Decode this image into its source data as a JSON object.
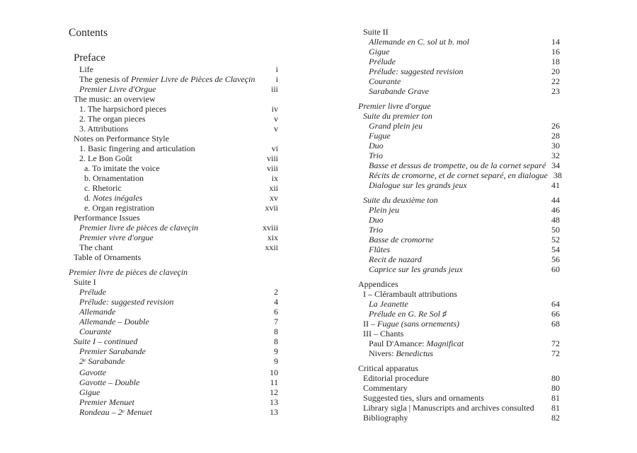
{
  "title": "Contents",
  "columns": [
    {
      "side": "left",
      "entries": [
        {
          "indent": 1,
          "header": true,
          "segments": [
            {
              "text": "Preface"
            }
          ],
          "page": ""
        },
        {
          "indent": 2,
          "segments": [
            {
              "text": "Life"
            }
          ],
          "page": "i"
        },
        {
          "indent": 2,
          "segments": [
            {
              "text": "The genesis of "
            },
            {
              "text": "Premier Livre de Pièces de Claveçin",
              "italic": true
            }
          ],
          "page": "i"
        },
        {
          "indent": 2,
          "segments": [
            {
              "text": "Premier Livre d'Orgue",
              "italic": true
            }
          ],
          "page": "iii"
        },
        {
          "indent": 1,
          "segments": [
            {
              "text": "The music: an overview"
            }
          ],
          "page": ""
        },
        {
          "indent": 2,
          "segments": [
            {
              "text": "1. The harpsichord pieces"
            }
          ],
          "page": "iv"
        },
        {
          "indent": 2,
          "segments": [
            {
              "text": "2. The organ pieces"
            }
          ],
          "page": "v"
        },
        {
          "indent": 2,
          "segments": [
            {
              "text": "3. Attributions"
            }
          ],
          "page": "v"
        },
        {
          "indent": 1,
          "segments": [
            {
              "text": "Notes on Performance Style"
            }
          ],
          "page": ""
        },
        {
          "indent": 2,
          "segments": [
            {
              "text": "1. Basic fingering and articulation"
            }
          ],
          "page": "vi"
        },
        {
          "indent": 2,
          "segments": [
            {
              "text": "2. Le Bon Goût"
            }
          ],
          "page": "viii"
        },
        {
          "indent": 3,
          "segments": [
            {
              "text": "a. To imitate the voice"
            }
          ],
          "page": "viii"
        },
        {
          "indent": 3,
          "segments": [
            {
              "text": "b. Ornamentation"
            }
          ],
          "page": "ix"
        },
        {
          "indent": 3,
          "segments": [
            {
              "text": "c. Rhetoric"
            }
          ],
          "page": "xii"
        },
        {
          "indent": 3,
          "segments": [
            {
              "text": "d. "
            },
            {
              "text": "Notes inégales",
              "italic": true
            }
          ],
          "page": "xv"
        },
        {
          "indent": 3,
          "segments": [
            {
              "text": "e. Organ registration"
            }
          ],
          "page": "xvii"
        },
        {
          "indent": 1,
          "segments": [
            {
              "text": "Performance Issues"
            }
          ],
          "page": ""
        },
        {
          "indent": 2,
          "segments": [
            {
              "text": "Premier livre de pièces de claveçin",
              "italic": true
            }
          ],
          "page": "xviii"
        },
        {
          "indent": 2,
          "segments": [
            {
              "text": "Premier vivre d'orgue",
              "italic": true
            }
          ],
          "page": "xix"
        },
        {
          "indent": 2,
          "segments": [
            {
              "text": "The chant"
            }
          ],
          "page": "xxii"
        },
        {
          "indent": 1,
          "segments": [
            {
              "text": "Table of Ornaments"
            }
          ],
          "page": ""
        },
        {
          "indent": 0,
          "gap_before": true,
          "segments": [
            {
              "text": "Premier livre de pièces de claveçin",
              "italic": true
            }
          ],
          "page": ""
        },
        {
          "indent": 1,
          "segments": [
            {
              "text": "Suite I"
            }
          ],
          "page": ""
        },
        {
          "indent": 2,
          "segments": [
            {
              "text": "Prélude",
              "italic": true
            }
          ],
          "page": "2"
        },
        {
          "indent": 2,
          "segments": [
            {
              "text": "Prélude: suggested revision",
              "italic": true
            }
          ],
          "page": "4"
        },
        {
          "indent": 2,
          "segments": [
            {
              "text": "Allemande",
              "italic": true
            }
          ],
          "page": "6"
        },
        {
          "indent": 2,
          "segments": [
            {
              "text": "Allemande – Double",
              "italic": true
            }
          ],
          "page": "7"
        },
        {
          "indent": 2,
          "segments": [
            {
              "text": "Courante",
              "italic": true
            }
          ],
          "page": "8"
        },
        {
          "indent": 1,
          "segments": [
            {
              "text": "Suite I – continued",
              "italic": true
            }
          ],
          "page": "8"
        },
        {
          "indent": 2,
          "segments": [
            {
              "text": "Premier Sarabande",
              "italic": true
            }
          ],
          "page": "9"
        },
        {
          "indent": 2,
          "segments": [
            {
              "text": "2",
              "italic": true
            },
            {
              "text": "e",
              "italic": true,
              "sup": true
            },
            {
              "text": " Sarabande",
              "italic": true
            }
          ],
          "page": "9"
        },
        {
          "indent": 2,
          "segments": [
            {
              "text": "Gavotte",
              "italic": true
            }
          ],
          "page": "10"
        },
        {
          "indent": 2,
          "segments": [
            {
              "text": "Gavotte – Double",
              "italic": true
            }
          ],
          "page": "11"
        },
        {
          "indent": 2,
          "segments": [
            {
              "text": "Gigue",
              "italic": true
            }
          ],
          "page": "12"
        },
        {
          "indent": 2,
          "segments": [
            {
              "text": "Premier Menuet",
              "italic": true
            }
          ],
          "page": "13"
        },
        {
          "indent": 2,
          "segments": [
            {
              "text": "Rondeau – 2",
              "italic": true
            },
            {
              "text": "e",
              "italic": true,
              "sup": true
            },
            {
              "text": " Menuet",
              "italic": true
            }
          ],
          "page": "13"
        }
      ]
    },
    {
      "side": "right",
      "entries": [
        {
          "indent": 1,
          "segments": [
            {
              "text": "Suite II"
            }
          ],
          "page": ""
        },
        {
          "indent": 2,
          "segments": [
            {
              "text": "Allemande en C. sol ut b. mol",
              "italic": true
            }
          ],
          "page": "14"
        },
        {
          "indent": 2,
          "segments": [
            {
              "text": "Gigue",
              "italic": true
            }
          ],
          "page": "16"
        },
        {
          "indent": 2,
          "segments": [
            {
              "text": "Prélude",
              "italic": true
            }
          ],
          "page": "18"
        },
        {
          "indent": 2,
          "segments": [
            {
              "text": "Prélude: suggested revision",
              "italic": true
            }
          ],
          "page": "20"
        },
        {
          "indent": 2,
          "segments": [
            {
              "text": "Courante",
              "italic": true
            }
          ],
          "page": "22"
        },
        {
          "indent": 2,
          "segments": [
            {
              "text": "Sarabande Grave",
              "italic": true
            }
          ],
          "page": "23"
        },
        {
          "indent": 0,
          "gap_before": true,
          "segments": [
            {
              "text": "Premier livre d'orgue",
              "italic": true
            }
          ],
          "page": ""
        },
        {
          "indent": 1,
          "segments": [
            {
              "text": "Suite du premier ton",
              "italic": true
            }
          ],
          "page": ""
        },
        {
          "indent": 2,
          "segments": [
            {
              "text": "Grand plein jeu",
              "italic": true
            }
          ],
          "page": "26"
        },
        {
          "indent": 2,
          "segments": [
            {
              "text": "Fugue",
              "italic": true
            }
          ],
          "page": "28"
        },
        {
          "indent": 2,
          "segments": [
            {
              "text": "Duo",
              "italic": true
            }
          ],
          "page": "30"
        },
        {
          "indent": 2,
          "segments": [
            {
              "text": "Trio",
              "italic": true
            }
          ],
          "page": "32"
        },
        {
          "indent": 2,
          "segments": [
            {
              "text": "Basse et dessus de trompette, ou de la cornet separé",
              "italic": true
            }
          ],
          "page": "34"
        },
        {
          "indent": 2,
          "segments": [
            {
              "text": "Récits de cromorne, et de cornet separé, en dialogue",
              "italic": true
            }
          ],
          "page": "38"
        },
        {
          "indent": 2,
          "segments": [
            {
              "text": "Dialogue sur les grands jeux",
              "italic": true
            }
          ],
          "page": "41"
        },
        {
          "indent": 1,
          "gap_before": true,
          "segments": [
            {
              "text": "Suite du deuxième ton",
              "italic": true
            }
          ],
          "page": "44"
        },
        {
          "indent": 2,
          "segments": [
            {
              "text": "Plein jeu",
              "italic": true
            }
          ],
          "page": "46"
        },
        {
          "indent": 2,
          "segments": [
            {
              "text": "Duo",
              "italic": true
            }
          ],
          "page": "48"
        },
        {
          "indent": 2,
          "segments": [
            {
              "text": "Trio",
              "italic": true
            }
          ],
          "page": "50"
        },
        {
          "indent": 2,
          "segments": [
            {
              "text": "Basse de cromorne",
              "italic": true
            }
          ],
          "page": "52"
        },
        {
          "indent": 2,
          "segments": [
            {
              "text": "Flûtes",
              "italic": true
            }
          ],
          "page": "54"
        },
        {
          "indent": 2,
          "segments": [
            {
              "text": "Recit de nazard",
              "italic": true
            }
          ],
          "page": "56"
        },
        {
          "indent": 2,
          "segments": [
            {
              "text": "Caprice sur les grands jeux",
              "italic": true
            }
          ],
          "page": "60"
        },
        {
          "indent": 0,
          "gap_before": true,
          "segments": [
            {
              "text": "Appendices"
            }
          ],
          "page": ""
        },
        {
          "indent": 1,
          "segments": [
            {
              "text": "I – Clérambault attributions"
            }
          ],
          "page": ""
        },
        {
          "indent": 2,
          "segments": [
            {
              "text": "La Jeanette",
              "italic": true
            }
          ],
          "page": "64"
        },
        {
          "indent": 2,
          "segments": [
            {
              "text": "Prélude en G. Re Sol ♯",
              "italic": true
            }
          ],
          "page": "66"
        },
        {
          "indent": 1,
          "segments": [
            {
              "text": "II – "
            },
            {
              "text": "Fugue (sans ornements)",
              "italic": true
            }
          ],
          "page": "68"
        },
        {
          "indent": 1,
          "segments": [
            {
              "text": "III – Chants"
            }
          ],
          "page": ""
        },
        {
          "indent": 2,
          "segments": [
            {
              "text": "Paul D'Amance: "
            },
            {
              "text": "Magnificat",
              "italic": true
            }
          ],
          "page": "72"
        },
        {
          "indent": 2,
          "segments": [
            {
              "text": "Nivers: "
            },
            {
              "text": "Benedictus",
              "italic": true
            }
          ],
          "page": "72"
        },
        {
          "indent": 0,
          "gap_before": true,
          "segments": [
            {
              "text": "Critical apparatus"
            }
          ],
          "page": ""
        },
        {
          "indent": 1,
          "segments": [
            {
              "text": "Editorial procedure"
            }
          ],
          "page": "80"
        },
        {
          "indent": 1,
          "segments": [
            {
              "text": "Commentary"
            }
          ],
          "page": "80"
        },
        {
          "indent": 1,
          "segments": [
            {
              "text": "Suggested ties, slurs and ornaments"
            }
          ],
          "page": "81"
        },
        {
          "indent": 1,
          "segments": [
            {
              "text": "Library sigla | Manuscripts and archives consulted"
            }
          ],
          "page": "81"
        },
        {
          "indent": 1,
          "segments": [
            {
              "text": "Bibliography"
            }
          ],
          "page": "82"
        }
      ]
    }
  ]
}
